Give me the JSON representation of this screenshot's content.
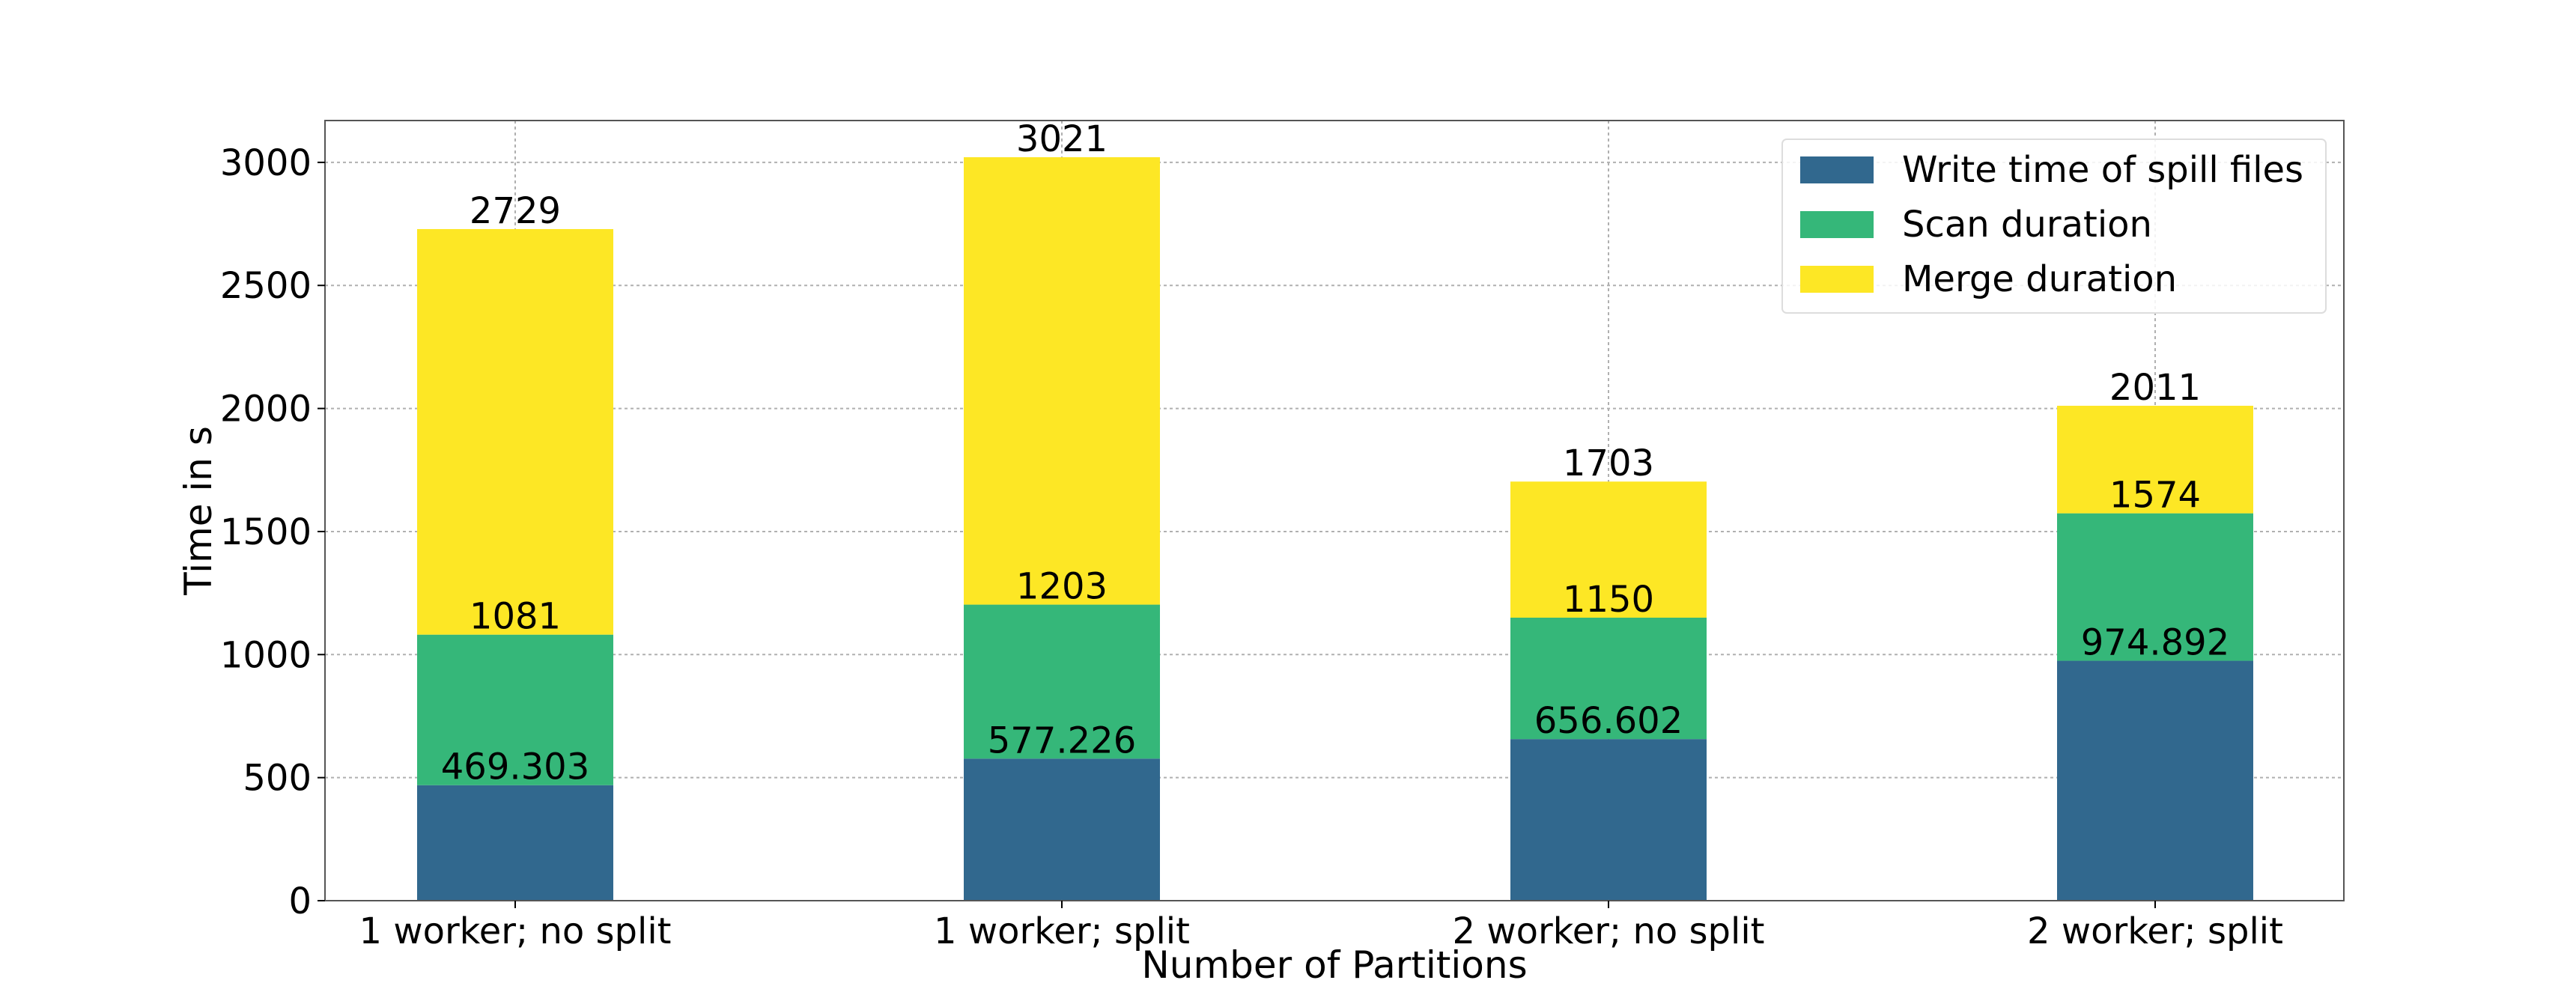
{
  "chart_data": {
    "type": "bar",
    "stacked": true,
    "title": "",
    "xlabel": "Number of Partitions",
    "ylabel": "Time in s",
    "categories": [
      "1 worker; no split",
      "1 worker; split",
      "2 worker; no split",
      "2 worker; split"
    ],
    "ylim": [
      0,
      3170
    ],
    "yticks": [
      0,
      500,
      1000,
      1500,
      2000,
      2500,
      3000
    ],
    "grid": true,
    "legend_position": "top-right",
    "series": [
      {
        "name": "Write time of spill files",
        "color": "#31688e",
        "values": [
          469.303,
          577.226,
          656.602,
          974.892
        ],
        "labels": [
          "469.303",
          "577.226",
          "656.602",
          "974.892"
        ]
      },
      {
        "name": "Scan duration",
        "color": "#35b779",
        "values": [
          611.697,
          625.774,
          493.398,
          599.108
        ],
        "labels": [
          "1081",
          "1203",
          "1150",
          "1574"
        ]
      },
      {
        "name": "Merge duration",
        "color": "#fde725",
        "values": [
          1648,
          1818,
          553,
          437
        ],
        "labels": [
          "2729",
          "3021",
          "1703",
          "2011"
        ]
      }
    ]
  }
}
